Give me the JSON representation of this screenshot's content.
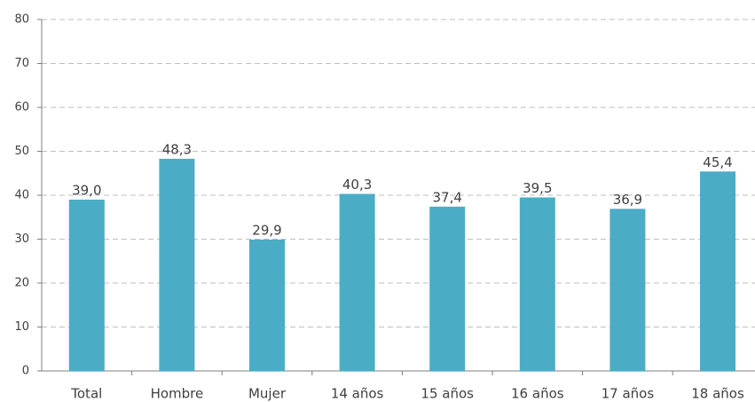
{
  "chart_data": {
    "type": "bar",
    "categories": [
      "Total",
      "Hombre",
      "Mujer",
      "14 años",
      "15 años",
      "16 años",
      "17 años",
      "18 años"
    ],
    "values": [
      39.0,
      48.3,
      29.9,
      40.3,
      37.4,
      39.5,
      36.9,
      45.4
    ],
    "value_labels": [
      "39,0",
      "48,3",
      "29,9",
      "40,3",
      "37,4",
      "39,5",
      "36,9",
      "45,4"
    ],
    "color": "#4bacc6",
    "ylim": [
      0,
      80
    ],
    "yticks": [
      0,
      10,
      20,
      30,
      40,
      50,
      60,
      70,
      80
    ],
    "grid": true
  }
}
